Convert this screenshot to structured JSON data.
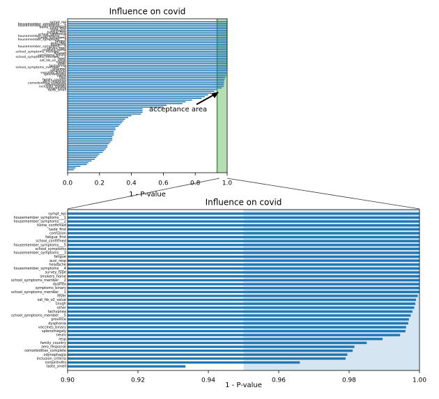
{
  "chart_data": [
    {
      "type": "barh",
      "title": "Influence on covid",
      "x_label": "1 - P-value",
      "color": "#1f77b4",
      "annotation": "acceptance area",
      "acceptance_threshold": 0.95,
      "shade_color": "#2ca02c",
      "categories": [
        "sympt_epi",
        "housemember_symptoms___1",
        "housemember_symptoms___2",
        "home_confirmed",
        "taste_first",
        "confusion",
        "fatigue_first",
        "school_confirmed",
        "housemember_symptoms___5",
        "school_symptoms",
        "housemember_symptoms___3",
        "fatigue",
        "auxi_resp",
        "headache",
        "housemember_symptoms___4",
        "survey_type",
        "smokers_home",
        "school_symptoms_member___2",
        "dyarrea",
        "symptoms_binary",
        "school_symptoms_member___1",
        "fever",
        "sat_hb_o2_value",
        "cough",
        "other",
        "tachypnea",
        "school_symptoms_member___5",
        "province",
        "dysphonia",
        "vaccines_binary",
        "splenomegaly",
        "neuro",
        "resp",
        "family_country",
        "zero_response",
        "comorbidities_complete",
        "odynophagia",
        "inclusion_criteria",
        "conjuntivitis",
        "taste_smell",
        null,
        null,
        null,
        null,
        null,
        null,
        null,
        null,
        null,
        null,
        null,
        null,
        null,
        null,
        null,
        null,
        null,
        null,
        null,
        null,
        null,
        null,
        null,
        null,
        null,
        null,
        null,
        null,
        null,
        null,
        null,
        null,
        null,
        null,
        null,
        null,
        null,
        null,
        null,
        null,
        null,
        null,
        null,
        null,
        null,
        null
      ],
      "values": [
        1,
        1,
        1,
        1,
        1,
        1,
        1,
        1,
        1,
        1,
        1,
        1,
        1,
        1,
        1,
        1,
        1,
        1,
        1,
        1,
        1,
        0.9995,
        0.999,
        0.9988,
        0.9985,
        0.998,
        0.9975,
        0.997,
        0.9968,
        0.9962,
        0.996,
        0.9945,
        0.9895,
        0.985,
        0.9815,
        0.981,
        0.9795,
        0.979,
        0.966,
        0.9335,
        0.92,
        0.9,
        0.88,
        0.86,
        0.84,
        0.78,
        0.74,
        0.72,
        0.62,
        0.6,
        0.47,
        0.47,
        0.47,
        0.46,
        0.4,
        0.38,
        0.36,
        0.35,
        0.34,
        0.33,
        0.32,
        0.3,
        0.3,
        0.29,
        0.29,
        0.29,
        0.28,
        0.28,
        0.28,
        0.27,
        0.26,
        0.25,
        0.25,
        0.24,
        0.23,
        0.22,
        0.2,
        0.19,
        0.18,
        0.17,
        0.15,
        0.13,
        0.12,
        0.08,
        0.05,
        0.04
      ],
      "xlim": [
        0,
        1.0
      ],
      "xticks": [
        {
          "value": 0,
          "label": "0.0"
        },
        {
          "value": 0.2,
          "label": "0.2"
        },
        {
          "value": 0.4,
          "label": "0.4"
        },
        {
          "value": 0.6,
          "label": "0.6"
        },
        {
          "value": 0.8,
          "label": "0.8"
        },
        {
          "value": 1,
          "label": "1.0"
        }
      ]
    },
    {
      "type": "barh",
      "title": "Influence on covid",
      "x_label": "1 - P-value",
      "color": "#1f77b4",
      "acceptance_threshold": 0.95,
      "shade_color": "#b9d3e8",
      "categories": [
        "sympt_epi",
        "housemember_symptoms___1",
        "housemember_symptoms___2",
        "home_confirmed",
        "taste_first",
        "confusion",
        "fatigue_first",
        "school_confirmed",
        "housemember_symptoms___5",
        "school_symptoms",
        "housemember_symptoms___3",
        "fatigue",
        "auxi_resp",
        "headache",
        "housemember_symptoms___4",
        "survey_type",
        "smokers_home",
        "school_symptoms_member___2",
        "dyarrea",
        "symptoms_binary",
        "school_symptoms_member___1",
        "fever",
        "sat_hb_o2_value",
        "cough",
        "other",
        "tachypnea",
        "school_symptoms_member___5",
        "province",
        "dysphonia",
        "vaccines_binary",
        "splenomegaly",
        "neuro",
        "resp",
        "family_country",
        "zero_response",
        "comorbidities_complete",
        "odynophagia",
        "inclusion_criteria",
        "conjuntivitis",
        "taste_smell"
      ],
      "values": [
        1,
        1,
        1,
        1,
        1,
        1,
        1,
        1,
        1,
        1,
        1,
        1,
        1,
        1,
        1,
        1,
        1,
        1,
        1,
        1,
        1,
        0.9995,
        0.999,
        0.9988,
        0.9985,
        0.998,
        0.9975,
        0.997,
        0.9968,
        0.9962,
        0.996,
        0.9945,
        0.9895,
        0.985,
        0.9815,
        0.981,
        0.9795,
        0.979,
        0.966,
        0.9335
      ],
      "xlim": [
        0.9,
        1.0
      ],
      "xticks": [
        {
          "value": 0.9,
          "label": "0.90"
        },
        {
          "value": 0.92,
          "label": "0.92"
        },
        {
          "value": 0.94,
          "label": "0.94"
        },
        {
          "value": 0.96,
          "label": "0.96"
        },
        {
          "value": 0.98,
          "label": "0.98"
        },
        {
          "value": 1,
          "label": "1.00"
        }
      ]
    }
  ]
}
